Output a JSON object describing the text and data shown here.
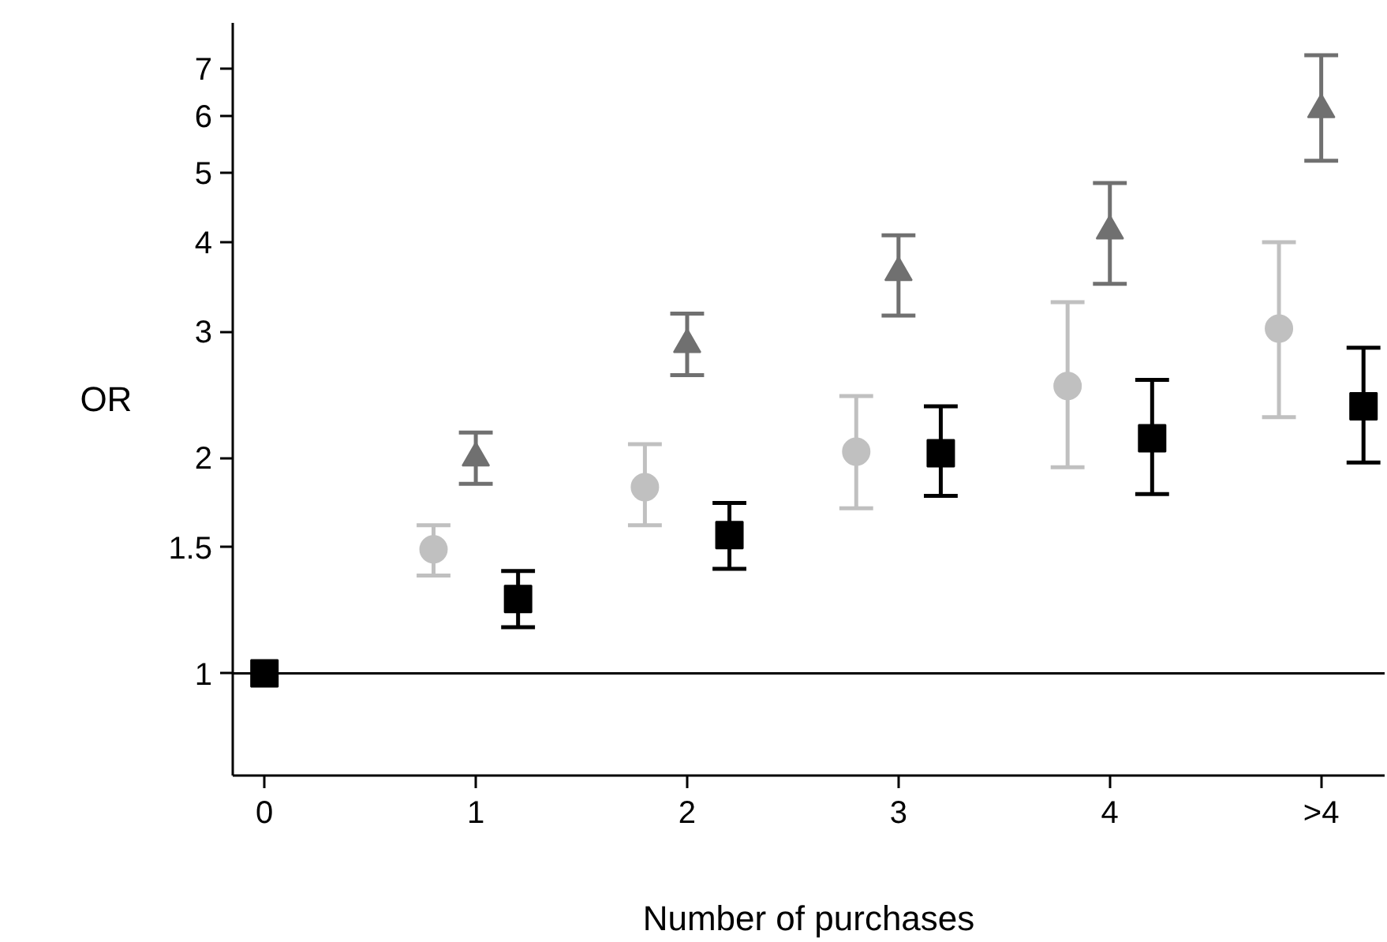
{
  "chart_data": {
    "type": "scatter",
    "xlabel": "Number of purchases",
    "ylabel": "OR",
    "log": "y",
    "grid": false,
    "xlim": [
      -0.15,
      5.3
    ],
    "xticks": [
      0,
      1,
      2,
      3,
      4,
      {
        "value": 5,
        "label": ">4"
      }
    ],
    "ylim": [
      0.72,
      8.1
    ],
    "yticks": [
      1,
      1.5,
      2,
      3,
      4,
      5,
      6,
      7
    ],
    "ref_lines": [
      {
        "axis": "y",
        "value": 1,
        "color": "#000000",
        "line_style": "solid"
      }
    ],
    "series": [
      {
        "color": "#c0c0c0",
        "marker": "circle",
        "x": [
          0.8,
          1.8,
          2.8,
          3.8,
          4.8
        ],
        "values": [
          1.49,
          1.82,
          2.04,
          2.52,
          3.03
        ],
        "errors": [
          [
            1.37,
            1.61
          ],
          [
            1.61,
            2.09
          ],
          [
            1.7,
            2.44
          ],
          [
            1.94,
            3.3
          ],
          [
            2.28,
            4.0
          ]
        ]
      },
      {
        "color": "#707070",
        "marker": "triangle",
        "x": [
          1,
          2,
          3,
          4,
          5
        ],
        "values": [
          2.0,
          2.88,
          3.63,
          4.15,
          6.13
        ],
        "errors": [
          [
            1.84,
            2.17
          ],
          [
            2.61,
            3.18
          ],
          [
            3.16,
            4.09
          ],
          [
            3.5,
            4.84
          ],
          [
            5.2,
            7.3
          ]
        ]
      },
      {
        "color": "#000000",
        "marker": "square",
        "x": [
          0,
          1.2,
          2.2,
          3.2,
          4.2,
          5.2
        ],
        "values": [
          1.0,
          1.27,
          1.56,
          2.03,
          2.13,
          2.36
        ],
        "errors": [
          null,
          [
            1.16,
            1.39
          ],
          [
            1.4,
            1.73
          ],
          [
            1.77,
            2.36
          ],
          [
            1.78,
            2.57
          ],
          [
            1.97,
            2.85
          ]
        ]
      }
    ]
  }
}
